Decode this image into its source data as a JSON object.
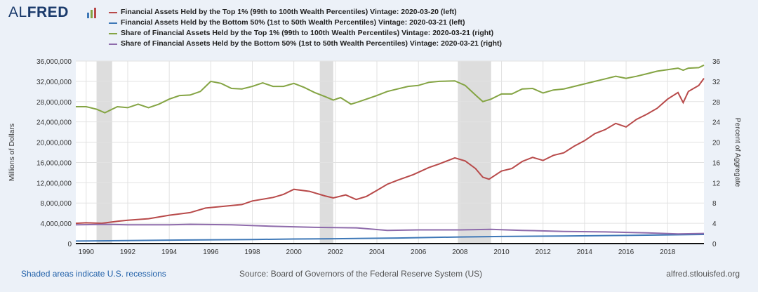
{
  "logo": {
    "text_al": "AL",
    "text_fred": "FRED"
  },
  "footer": {
    "recession_note": "Shaded areas indicate U.S. recessions",
    "source": "Source: Board of Governors of the Federal Reserve System (US)",
    "site": "alfred.stlouisfed.org"
  },
  "colors": {
    "top1_assets": "#b84a4a",
    "bottom50_assets": "#3e78b7",
    "top1_share": "#84a443",
    "bottom50_share": "#8e6bab",
    "recession": "#dddddd"
  },
  "chart_data": {
    "type": "line",
    "title": "",
    "xlabel": "",
    "ylabel_left": "Millions of Dollars",
    "ylabel_right": "Percent of Aggregate",
    "xlim": [
      1989.5,
      2019.75
    ],
    "ylim_left": [
      0,
      36000000
    ],
    "ylim_right": [
      0,
      36
    ],
    "x_ticks": [
      1990,
      1992,
      1994,
      1996,
      1998,
      2000,
      2002,
      2004,
      2006,
      2008,
      2010,
      2012,
      2014,
      2016,
      2018
    ],
    "y_ticks_left": [
      "0",
      "4,000,000",
      "8,000,000",
      "12,000,000",
      "16,000,000",
      "20,000,000",
      "24,000,000",
      "28,000,000",
      "32,000,000",
      "36,000,000"
    ],
    "y_ticks_right": [
      "0",
      "4",
      "8",
      "12",
      "16",
      "20",
      "24",
      "28",
      "32",
      "36"
    ],
    "recessions": [
      [
        1990.5,
        1991.25
      ],
      [
        2001.25,
        2001.9
      ],
      [
        2007.9,
        2009.5
      ]
    ],
    "legend_position": "top",
    "series": [
      {
        "name": "Financial Assets Held by the Top 1% (99th to 100th Wealth Percentiles) Vintage: 2020-03-20 (left)",
        "axis": "left",
        "color_key": "top1_assets",
        "points": [
          [
            1989.5,
            4000000
          ],
          [
            1990,
            4100000
          ],
          [
            1990.75,
            4000000
          ],
          [
            1991.5,
            4400000
          ],
          [
            1992,
            4600000
          ],
          [
            1993,
            4900000
          ],
          [
            1994,
            5600000
          ],
          [
            1995,
            6100000
          ],
          [
            1995.75,
            7000000
          ],
          [
            1996.5,
            7300000
          ],
          [
            1997.5,
            7700000
          ],
          [
            1998,
            8400000
          ],
          [
            1999,
            9100000
          ],
          [
            1999.5,
            9700000
          ],
          [
            2000,
            10700000
          ],
          [
            2000.75,
            10300000
          ],
          [
            2001.5,
            9400000
          ],
          [
            2001.9,
            9000000
          ],
          [
            2002.5,
            9600000
          ],
          [
            2003,
            8700000
          ],
          [
            2003.5,
            9300000
          ],
          [
            2004,
            10500000
          ],
          [
            2004.5,
            11700000
          ],
          [
            2005,
            12500000
          ],
          [
            2005.75,
            13600000
          ],
          [
            2006.5,
            15000000
          ],
          [
            2007,
            15700000
          ],
          [
            2007.75,
            16900000
          ],
          [
            2008.25,
            16300000
          ],
          [
            2008.75,
            14800000
          ],
          [
            2009.1,
            13100000
          ],
          [
            2009.4,
            12700000
          ],
          [
            2010,
            14300000
          ],
          [
            2010.5,
            14800000
          ],
          [
            2011,
            16200000
          ],
          [
            2011.5,
            17000000
          ],
          [
            2012,
            16400000
          ],
          [
            2012.5,
            17400000
          ],
          [
            2013,
            17900000
          ],
          [
            2013.5,
            19200000
          ],
          [
            2014,
            20300000
          ],
          [
            2014.5,
            21700000
          ],
          [
            2015,
            22500000
          ],
          [
            2015.5,
            23700000
          ],
          [
            2016,
            23000000
          ],
          [
            2016.5,
            24500000
          ],
          [
            2017,
            25500000
          ],
          [
            2017.5,
            26700000
          ],
          [
            2018,
            28500000
          ],
          [
            2018.5,
            29800000
          ],
          [
            2018.75,
            27800000
          ],
          [
            2019,
            30000000
          ],
          [
            2019.5,
            31200000
          ],
          [
            2019.75,
            32600000
          ]
        ]
      },
      {
        "name": "Financial Assets Held by the Bottom 50% (1st to 50th Wealth Percentiles) Vintage: 2020-03-21 (left)",
        "axis": "left",
        "color_key": "bottom50_assets",
        "points": [
          [
            1989.5,
            500000
          ],
          [
            1992,
            600000
          ],
          [
            1995,
            700000
          ],
          [
            1998,
            800000
          ],
          [
            2000,
            900000
          ],
          [
            2002,
            950000
          ],
          [
            2005,
            1100000
          ],
          [
            2008,
            1300000
          ],
          [
            2010,
            1400000
          ],
          [
            2013,
            1500000
          ],
          [
            2016,
            1600000
          ],
          [
            2019.75,
            1800000
          ]
        ]
      },
      {
        "name": "Share of Financial Assets Held by the Top 1% (99th to 100th Wealth Percentiles) Vintage: 2020-03-21 (right)",
        "axis": "right",
        "color_key": "top1_share",
        "points": [
          [
            1989.5,
            27
          ],
          [
            1990,
            27
          ],
          [
            1990.5,
            26.5
          ],
          [
            1990.9,
            25.8
          ],
          [
            1991.5,
            27
          ],
          [
            1992,
            26.8
          ],
          [
            1992.5,
            27.5
          ],
          [
            1993,
            26.8
          ],
          [
            1993.5,
            27.5
          ],
          [
            1994,
            28.5
          ],
          [
            1994.5,
            29.2
          ],
          [
            1995,
            29.3
          ],
          [
            1995.5,
            30
          ],
          [
            1995.75,
            31
          ],
          [
            1996,
            32
          ],
          [
            1996.5,
            31.6
          ],
          [
            1997,
            30.6
          ],
          [
            1997.5,
            30.5
          ],
          [
            1998,
            31
          ],
          [
            1998.5,
            31.7
          ],
          [
            1999,
            31
          ],
          [
            1999.5,
            31
          ],
          [
            2000,
            31.6
          ],
          [
            2000.5,
            30.8
          ],
          [
            2001,
            29.8
          ],
          [
            2001.5,
            29
          ],
          [
            2001.9,
            28.3
          ],
          [
            2002.25,
            28.8
          ],
          [
            2002.75,
            27.5
          ],
          [
            2003,
            27.8
          ],
          [
            2003.5,
            28.5
          ],
          [
            2004,
            29.2
          ],
          [
            2004.5,
            30
          ],
          [
            2005,
            30.5
          ],
          [
            2005.5,
            31
          ],
          [
            2006,
            31.2
          ],
          [
            2006.5,
            31.8
          ],
          [
            2007,
            32
          ],
          [
            2007.75,
            32.1
          ],
          [
            2008.25,
            31.2
          ],
          [
            2008.75,
            29.3
          ],
          [
            2009.1,
            28
          ],
          [
            2009.5,
            28.5
          ],
          [
            2010,
            29.5
          ],
          [
            2010.5,
            29.5
          ],
          [
            2011,
            30.5
          ],
          [
            2011.5,
            30.6
          ],
          [
            2012,
            29.7
          ],
          [
            2012.5,
            30.3
          ],
          [
            2013,
            30.5
          ],
          [
            2013.5,
            31
          ],
          [
            2014,
            31.5
          ],
          [
            2014.5,
            32
          ],
          [
            2015,
            32.5
          ],
          [
            2015.5,
            33
          ],
          [
            2016,
            32.6
          ],
          [
            2016.5,
            33
          ],
          [
            2017,
            33.5
          ],
          [
            2017.5,
            34
          ],
          [
            2018,
            34.3
          ],
          [
            2018.5,
            34.6
          ],
          [
            2018.75,
            34.2
          ],
          [
            2019,
            34.6
          ],
          [
            2019.5,
            34.7
          ],
          [
            2019.75,
            35.2
          ]
        ]
      },
      {
        "name": "Share of Financial Assets Held by the Bottom 50% (1st to 50th Wealth Percentiles) Vintage: 2020-03-21 (right)",
        "axis": "right",
        "color_key": "bottom50_share",
        "points": [
          [
            1989.5,
            3.7
          ],
          [
            1991,
            3.8
          ],
          [
            1992,
            3.7
          ],
          [
            1994,
            3.7
          ],
          [
            1995,
            3.8
          ],
          [
            1997,
            3.7
          ],
          [
            1999,
            3.4
          ],
          [
            2001,
            3.2
          ],
          [
            2003,
            3.1
          ],
          [
            2004.5,
            2.6
          ],
          [
            2006,
            2.7
          ],
          [
            2008,
            2.7
          ],
          [
            2009.5,
            2.8
          ],
          [
            2011,
            2.6
          ],
          [
            2013,
            2.4
          ],
          [
            2015,
            2.3
          ],
          [
            2017,
            2.1
          ],
          [
            2018.5,
            1.9
          ],
          [
            2019.75,
            2.0
          ]
        ]
      }
    ]
  }
}
